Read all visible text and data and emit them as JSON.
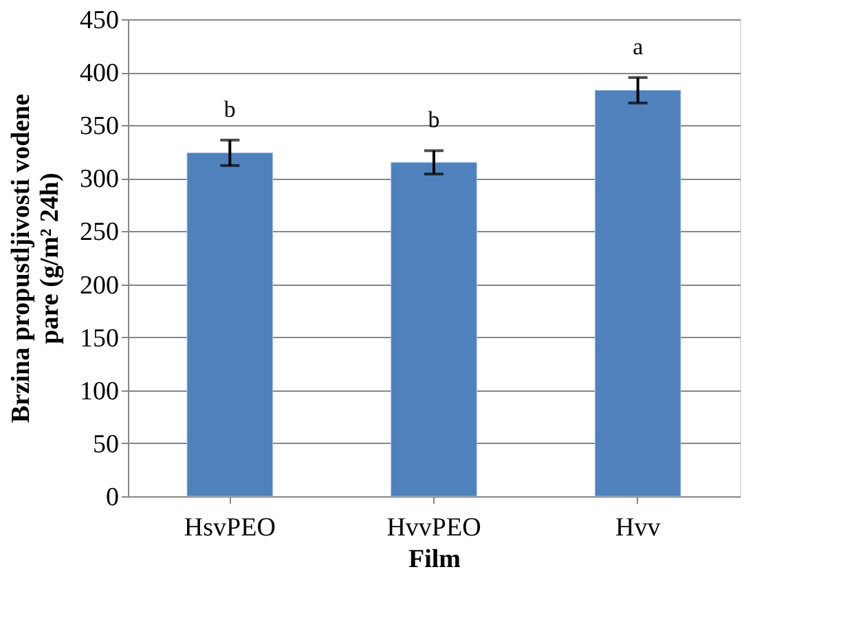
{
  "chart_data": {
    "type": "bar",
    "xlabel": "Film",
    "ylabel": "Brzina propustljivosti vodene pare (g/m² 24h)",
    "categories": [
      "HsvPEO",
      "HvvPEO",
      "Hvv"
    ],
    "series": [
      {
        "color": "#4f81bd",
        "values": [
          324,
          315,
          383
        ],
        "errors": [
          12,
          11,
          12
        ]
      }
    ],
    "ylim": [
      0,
      450
    ],
    "yticks": [
      0,
      50,
      100,
      150,
      200,
      250,
      300,
      350,
      400,
      450
    ],
    "grid": "y",
    "annotations": [
      "b",
      "b",
      "a"
    ]
  }
}
